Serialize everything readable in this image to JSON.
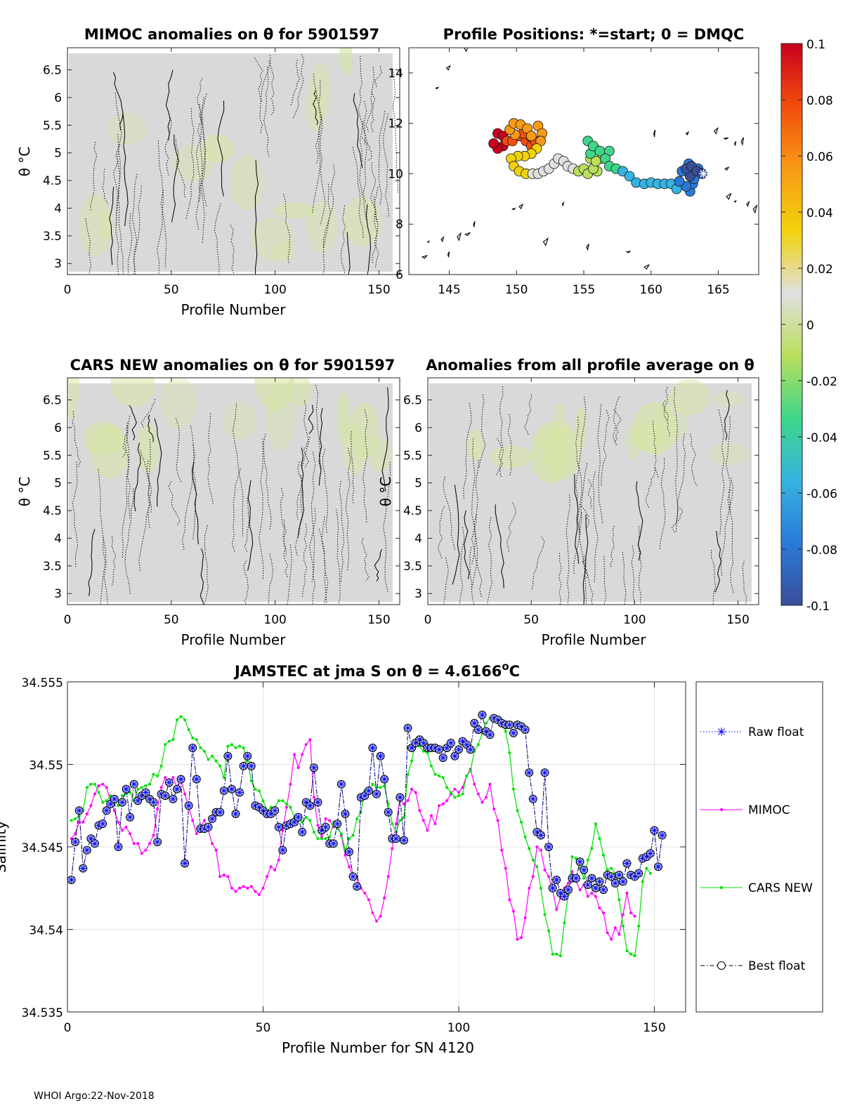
{
  "colors": {
    "raw_float": "#0000ff",
    "mimoc": "#ff00ff",
    "cars_new": "#00e000",
    "best_float": "#000000",
    "best_float_marker_fill": "#b8bff0",
    "anomaly_background": "#d9d9d9",
    "anomaly_warm_tint": "#d7e6a6",
    "colormap": [
      "#3a4f9a",
      "#2a7ad8",
      "#36b3e0",
      "#3fd68a",
      "#b9df5c",
      "#e0e0e0",
      "#f2d20c",
      "#f89a16",
      "#f24d0c",
      "#c8001e"
    ]
  },
  "chart_data": [
    {
      "id": "mimoc_anomalies",
      "type": "heatmap",
      "title": "MIMOC anomalies on θ  for 5901597",
      "xlabel": "Profile Number",
      "ylabel": "θ °C",
      "xlim": [
        0,
        160
      ],
      "ylim": [
        2.8,
        6.9
      ],
      "xticks": [
        0,
        50,
        100,
        150
      ],
      "yticks": [
        3,
        3.5,
        4,
        4.5,
        5,
        5.5,
        6,
        6.5
      ]
    },
    {
      "id": "profile_positions",
      "type": "scatter",
      "title": "Profile Positions: *=start; 0 = DMQC",
      "xlim": [
        142,
        168
      ],
      "ylim": [
        6,
        15
      ],
      "xticks": [
        145,
        150,
        155,
        160,
        165
      ],
      "yticks": [
        6,
        8,
        10,
        12,
        14
      ],
      "track": [
        [
          163.8,
          10.0
        ],
        [
          163.4,
          10.1
        ],
        [
          163.0,
          10.3
        ],
        [
          162.6,
          10.2
        ],
        [
          162.9,
          9.9
        ],
        [
          163.2,
          9.8
        ],
        [
          163.5,
          10.2
        ],
        [
          162.8,
          10.4
        ],
        [
          162.3,
          10.1
        ],
        [
          162.1,
          9.7
        ],
        [
          162.6,
          9.5
        ],
        [
          163.1,
          9.6
        ],
        [
          162.9,
          9.3
        ],
        [
          161.9,
          9.4
        ],
        [
          161.5,
          9.6
        ],
        [
          161.0,
          9.6
        ],
        [
          160.5,
          9.6
        ],
        [
          160.0,
          9.65
        ],
        [
          159.5,
          9.6
        ],
        [
          158.9,
          9.65
        ],
        [
          158.4,
          9.9
        ],
        [
          157.9,
          10.1
        ],
        [
          157.4,
          10.2
        ],
        [
          156.9,
          10.3
        ],
        [
          156.6,
          10.6
        ],
        [
          156.9,
          10.9
        ],
        [
          156.2,
          10.9
        ],
        [
          155.7,
          11.1
        ],
        [
          155.3,
          11.3
        ],
        [
          155.5,
          10.8
        ],
        [
          155.9,
          10.5
        ],
        [
          155.7,
          10.2
        ],
        [
          155.3,
          10.0
        ],
        [
          156.0,
          10.1
        ],
        [
          156.3,
          10.6
        ],
        [
          155.8,
          11.0
        ],
        [
          155.5,
          10.6
        ],
        [
          155.0,
          10.2
        ],
        [
          154.6,
          10.1
        ],
        [
          154.2,
          10.2
        ],
        [
          153.8,
          10.3
        ],
        [
          153.5,
          10.5
        ],
        [
          153.1,
          10.6
        ],
        [
          152.8,
          10.4
        ],
        [
          152.4,
          10.2
        ],
        [
          152.0,
          10.1
        ],
        [
          151.6,
          10.0
        ],
        [
          151.2,
          10.0
        ],
        [
          150.7,
          10.0
        ],
        [
          150.2,
          10.1
        ],
        [
          149.8,
          10.3
        ],
        [
          149.6,
          10.6
        ],
        [
          150.1,
          10.7
        ],
        [
          150.6,
          10.7
        ],
        [
          151.1,
          10.8
        ],
        [
          151.5,
          11.0
        ],
        [
          151.8,
          11.3
        ],
        [
          151.9,
          11.6
        ],
        [
          151.6,
          11.9
        ],
        [
          151.1,
          11.5
        ],
        [
          150.8,
          11.8
        ],
        [
          150.3,
          11.95
        ],
        [
          149.8,
          12.0
        ],
        [
          149.5,
          11.75
        ],
        [
          149.9,
          11.55
        ],
        [
          150.5,
          11.6
        ],
        [
          151.0,
          11.5
        ],
        [
          151.4,
          11.3
        ],
        [
          151.1,
          11.1
        ],
        [
          150.7,
          11.3
        ],
        [
          150.2,
          11.5
        ],
        [
          149.7,
          11.3
        ],
        [
          149.3,
          11.3
        ],
        [
          149.0,
          11.5
        ],
        [
          148.6,
          11.6
        ],
        [
          148.3,
          11.2
        ],
        [
          148.6,
          11.0
        ],
        [
          149.0,
          11.1
        ]
      ],
      "start_marker": [
        163.9,
        10.0
      ],
      "colorbar_ticks": [
        -0.1,
        -0.08,
        -0.06,
        -0.04,
        -0.02,
        0,
        0.02,
        0.04,
        0.06,
        0.08,
        0.1
      ],
      "colorbar_labels": [
        "-0.1",
        "-0.08",
        "-0.06",
        "-0.04",
        "-0.02",
        "0",
        "0.02",
        "0.04",
        "0.06",
        "0.08",
        "0.1"
      ],
      "colorbar_range": [
        -0.1,
        0.1
      ]
    },
    {
      "id": "cars_anomalies",
      "type": "heatmap",
      "title": "CARS NEW anomalies on θ for 5901597",
      "xlabel": "Profile Number",
      "ylabel": "θ °C",
      "xlim": [
        0,
        160
      ],
      "ylim": [
        2.8,
        6.9
      ],
      "xticks": [
        0,
        50,
        100,
        150
      ],
      "yticks": [
        3,
        3.5,
        4,
        4.5,
        5,
        5.5,
        6,
        6.5
      ]
    },
    {
      "id": "avg_anomalies",
      "type": "heatmap",
      "title": "Anomalies from all profile average on θ",
      "xlabel": "Profile Number",
      "ylabel": "θ °C",
      "xlim": [
        0,
        160
      ],
      "ylim": [
        2.8,
        6.9
      ],
      "xticks": [
        0,
        50,
        100,
        150
      ],
      "yticks": [
        3,
        3.5,
        4,
        4.5,
        5,
        5.5,
        6,
        6.5
      ]
    },
    {
      "id": "salinity",
      "type": "line",
      "title_main": "JAMSTEC at jma S on θ = 4.6166",
      "title_sup": "o",
      "title_end": "C",
      "xlabel": "Profile Number for SN 4120",
      "ylabel": "Salinity",
      "xlim": [
        0,
        158
      ],
      "ylim": [
        34.535,
        34.555
      ],
      "xticks": [
        0,
        50,
        100,
        150
      ],
      "yticks": [
        34.535,
        34.54,
        34.545,
        34.55,
        34.555
      ],
      "ytick_labels": [
        "34.535",
        "34.54",
        "34.545",
        "34.55",
        "34.555"
      ],
      "grid": true,
      "legend_position": "outside-right",
      "series": [
        {
          "name": "Raw float",
          "x0": 1,
          "values": [
            34.543,
            34.5453,
            34.5472,
            34.5437,
            34.5448,
            34.5455,
            34.5452,
            34.5463,
            34.5464,
            34.5472,
            34.5476,
            34.5479,
            34.545,
            34.5477,
            34.5485,
            34.5468,
            34.5488,
            34.5478,
            34.5481,
            34.5483,
            34.5479,
            34.5477,
            34.5453,
            34.5482,
            34.5481,
            34.5489,
            34.5479,
            34.5485,
            34.5491,
            34.544,
            34.5475,
            34.551,
            34.5491,
            34.5461,
            34.5461,
            34.5462,
            34.5467,
            34.5471,
            34.5471,
            34.5484,
            34.5505,
            34.5485,
            34.547,
            34.5483,
            34.5499,
            34.5505,
            34.5499,
            34.5475,
            34.5474,
            34.5472,
            34.547,
            34.547,
            34.5472,
            34.5462,
            34.5448,
            34.5463,
            34.5464,
            34.5465,
            34.5468,
            34.5459,
            34.5477,
            34.5475,
            34.5498,
            34.5477,
            34.546,
            34.5462,
            34.5452,
            34.5452,
            34.5464,
            34.5488,
            34.547,
            34.5447,
            34.5432,
            34.5426,
            34.548,
            34.5481,
            34.5484,
            34.551,
            34.5482,
            34.5505,
            34.5491,
            34.5471,
            34.5455,
            34.5455,
            34.548,
            34.5454,
            34.5522,
            34.551,
            34.5513,
            34.5515,
            34.5513,
            34.551,
            34.551,
            34.551,
            34.5509,
            34.5504,
            34.551,
            34.5513,
            34.5505,
            34.5509,
            34.5514,
            34.5512,
            34.5509,
            34.5525,
            34.5521,
            34.553,
            34.552,
            34.5518,
            34.5528,
            34.5527,
            34.5525,
            34.5524,
            34.5524,
            34.5519,
            34.5524,
            34.5523,
            34.5521,
            34.5495,
            34.5479,
            34.5459,
            34.5457,
            34.5495,
            34.545,
            34.5425,
            34.543,
            34.5422,
            34.542,
            34.5424,
            34.5431,
            34.5431,
            34.5441,
            34.5436,
            34.5427,
            34.5431,
            34.5425,
            34.5429,
            34.5424,
            34.5433,
            34.5432,
            34.5428,
            34.5433,
            34.5429,
            34.544,
            34.5433,
            34.5432,
            34.5434,
            34.5443,
            34.5444,
            34.5446,
            34.546,
            34.5438,
            34.5457
          ]
        },
        {
          "name": "MIMOC",
          "x0": 1,
          "values": [
            34.5455,
            34.5458,
            34.5465,
            34.5465,
            34.547,
            34.5475,
            34.5482,
            34.5487,
            34.5488,
            34.5486,
            34.5478,
            34.5472,
            34.5465,
            34.546,
            34.5462,
            34.5458,
            34.5452,
            34.5452,
            34.5446,
            34.5448,
            34.5452,
            34.5457,
            34.5473,
            34.5486,
            34.5492,
            34.5488,
            34.5492,
            34.5486,
            34.5492,
            34.5482,
            34.5474,
            34.5466,
            34.5458,
            34.5462,
            34.5466,
            34.546,
            34.5452,
            34.5448,
            34.5432,
            34.5433,
            34.5432,
            34.5425,
            34.5423,
            34.5425,
            34.5426,
            34.5425,
            34.5426,
            34.5423,
            34.5421,
            34.5425,
            34.5432,
            34.5438,
            34.5436,
            34.5442,
            34.546,
            34.5474,
            34.5488,
            34.5506,
            34.5498,
            34.5506,
            34.5512,
            34.5515,
            34.548,
            34.5463,
            34.5456,
            34.5467,
            34.5466,
            34.5462,
            34.5463,
            34.5457,
            34.5445,
            34.5438,
            34.5432,
            34.5432,
            34.5425,
            34.5422,
            34.5418,
            34.541,
            34.5405,
            34.5408,
            34.5419,
            34.5432,
            34.5449,
            34.5464,
            34.5479,
            34.5476,
            34.5478,
            34.5485,
            34.5483,
            34.5472,
            34.5466,
            34.546,
            34.5469,
            34.5464,
            34.5475,
            34.5476,
            34.5478,
            34.5482,
            34.5485,
            34.5483,
            34.5486,
            34.5493,
            34.5497,
            34.5488,
            34.5482,
            34.5477,
            34.548,
            34.5488,
            34.5473,
            34.5466,
            34.5448,
            34.5437,
            34.5418,
            34.5411,
            34.5394,
            34.5395,
            34.5407,
            34.5425,
            34.5432,
            34.545,
            34.5448,
            34.5436,
            34.5432,
            34.5424,
            34.5412,
            34.5419,
            34.5425,
            34.5428,
            34.5435,
            34.5429,
            34.5424,
            34.5427,
            34.542,
            34.5422,
            34.542,
            34.5413,
            34.541,
            34.5398,
            34.5394,
            34.5401,
            34.5397,
            34.5409,
            34.5422,
            34.541,
            34.5408
          ]
        },
        {
          "name": "CARS NEW",
          "x0": 1,
          "values": [
            34.5466,
            34.5467,
            34.5469,
            34.5472,
            34.5486,
            34.5488,
            34.5488,
            34.5483,
            34.5477,
            34.5478,
            34.5481,
            34.5478,
            34.5475,
            34.5481,
            34.5482,
            34.5483,
            34.5478,
            34.5485,
            34.5486,
            34.5487,
            34.5488,
            34.5494,
            34.5493,
            34.5499,
            34.5512,
            34.5514,
            34.5515,
            34.5527,
            34.5529,
            34.5527,
            34.5521,
            34.5516,
            34.5515,
            34.551,
            34.5508,
            34.5503,
            34.5505,
            34.5502,
            34.5499,
            34.5492,
            34.5511,
            34.5512,
            34.551,
            34.5511,
            34.551,
            34.5502,
            34.549,
            34.5485,
            34.5484,
            34.5478,
            34.5472,
            34.5474,
            34.5474,
            34.5478,
            34.5478,
            34.5476,
            34.5474,
            34.5468,
            34.5469,
            34.5465,
            34.5468,
            34.5466,
            34.5459,
            34.5455,
            34.5455,
            34.5455,
            34.5456,
            34.5465,
            34.5461,
            34.5458,
            34.5448,
            34.5455,
            34.5457,
            34.5467,
            34.5471,
            34.5484,
            34.5484,
            34.5488,
            34.5486,
            34.5486,
            34.5487,
            34.5476,
            34.5464,
            34.5459,
            34.5466,
            34.5468,
            34.5494,
            34.5502,
            34.5515,
            34.5511,
            34.5508,
            34.5507,
            34.5499,
            34.5494,
            34.5493,
            34.5492,
            34.5486,
            34.5483,
            34.548,
            34.5481,
            34.5482,
            34.5493,
            34.5496,
            34.5508,
            34.5512,
            34.5519,
            34.5525,
            34.5528,
            34.5529,
            34.5527,
            34.5527,
            34.552,
            34.5507,
            34.5485,
            34.5472,
            34.5465,
            34.5456,
            34.5449,
            34.5442,
            34.5438,
            34.5425,
            34.5409,
            34.5399,
            34.5385,
            34.5385,
            34.5384,
            34.5404,
            34.5421,
            34.5444,
            34.5443,
            34.5437,
            34.5431,
            34.5442,
            34.5449,
            34.5464,
            34.5455,
            34.5445,
            34.5436,
            34.5437,
            34.5434,
            34.5418,
            34.5402,
            34.5387,
            34.5385,
            34.5384,
            34.5402,
            34.5429,
            34.5437,
            34.5434
          ]
        },
        {
          "name": "Best float",
          "same_as": "Raw float"
        }
      ]
    }
  ],
  "footer": "WHOI Argo:22-Nov-2018"
}
